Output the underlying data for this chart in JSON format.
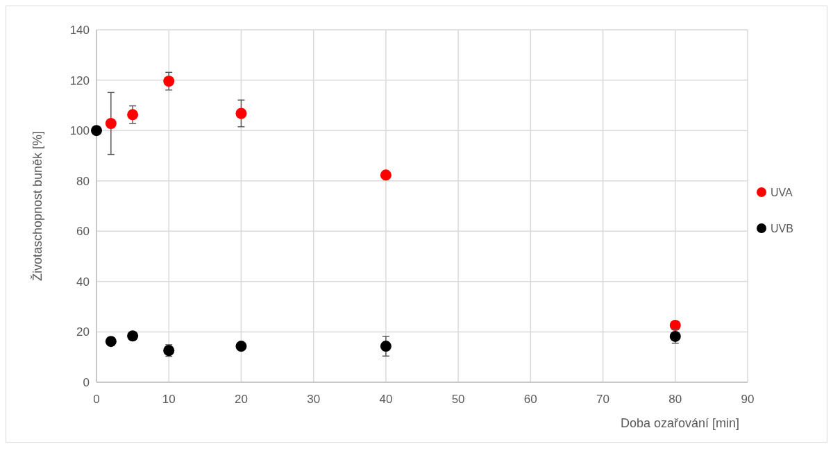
{
  "chart_data": {
    "type": "scatter",
    "xlabel": "Doba ozařování [min]",
    "ylabel": "Životaschopnost buněk [%]",
    "xlim": [
      0,
      90
    ],
    "xticks": [
      0,
      10,
      20,
      30,
      40,
      50,
      60,
      70,
      80,
      90
    ],
    "ylim": [
      0,
      140
    ],
    "yticks": [
      0,
      20,
      40,
      60,
      80,
      100,
      120,
      140
    ],
    "grid": true,
    "legend": "right",
    "marker": "circle",
    "series": [
      {
        "name": "UVA",
        "color": "#ff0000",
        "x": [
          2,
          5,
          10,
          20,
          40,
          80
        ],
        "values": [
          102.8,
          106.3,
          119.6,
          106.8,
          82.3,
          22.6
        ],
        "errors": [
          12.3,
          3.5,
          3.5,
          5.3,
          null,
          null
        ]
      },
      {
        "name": "UVB",
        "color": "#000000",
        "x": [
          0,
          2,
          5,
          10,
          20,
          40,
          80
        ],
        "values": [
          100,
          16.2,
          18.4,
          12.6,
          14.3,
          14.3,
          18.2
        ],
        "errors": [
          null,
          1.5,
          1.5,
          2.3,
          1,
          3.9,
          2.7
        ]
      }
    ]
  }
}
